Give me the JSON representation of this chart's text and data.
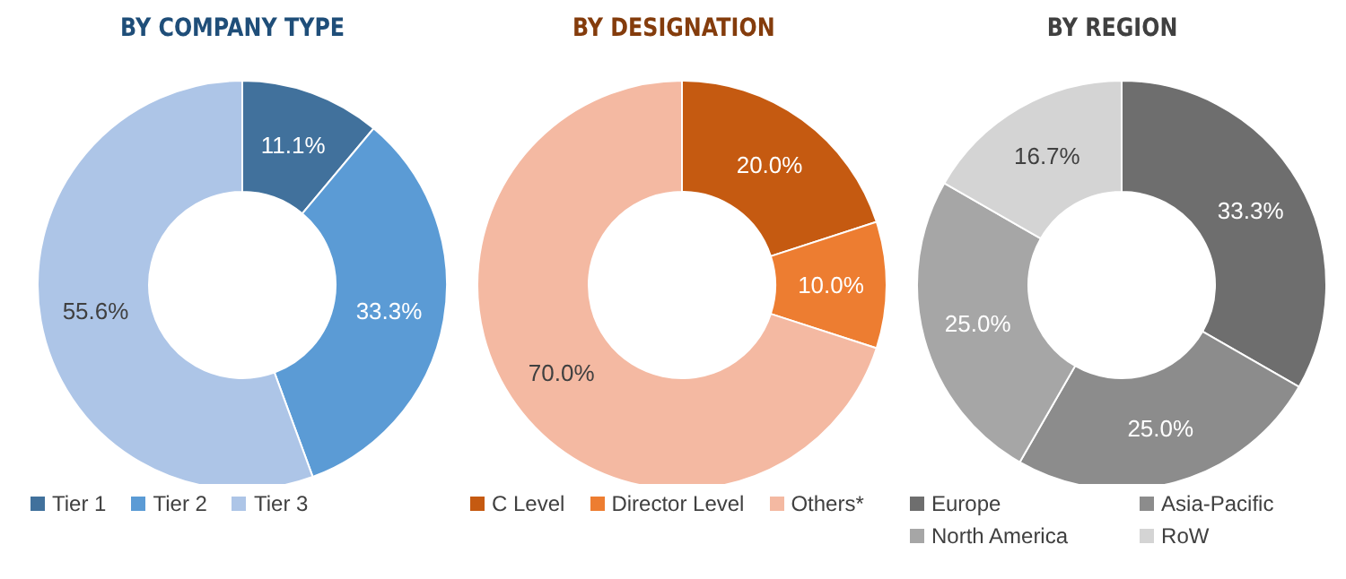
{
  "chart_data": [
    {
      "type": "donut",
      "title": "BY COMPANY TYPE",
      "categories": [
        "Tier 1",
        "Tier 2",
        "Tier 3"
      ],
      "values": [
        11.1,
        33.3,
        55.6
      ],
      "colors": [
        "#41719c",
        "#5b9bd5",
        "#adc5e7"
      ],
      "value_labels": [
        "11.1%",
        "33.3%",
        "55.6%"
      ],
      "legend": "bottom"
    },
    {
      "type": "donut",
      "title": "BY DESIGNATION",
      "categories": [
        "C Level",
        "Director Level",
        "Others*"
      ],
      "values": [
        20.0,
        10.0,
        70.0
      ],
      "colors": [
        "#c55a11",
        "#ed7d31",
        "#f4b9a2"
      ],
      "value_labels": [
        "20.0%",
        "10.0%",
        "70.0%"
      ],
      "legend": "bottom"
    },
    {
      "type": "donut",
      "title": "BY REGION",
      "categories": [
        "Europe",
        "Asia-Pacific",
        "North America",
        "RoW"
      ],
      "values": [
        33.3,
        25.0,
        25.0,
        16.7
      ],
      "colors": [
        "#6e6e6e",
        "#8c8c8c",
        "#a6a6a6",
        "#d4d4d4"
      ],
      "value_labels": [
        "33.3%",
        "25.0%",
        "25.0%",
        "16.7%"
      ],
      "legend": "bottom"
    }
  ]
}
